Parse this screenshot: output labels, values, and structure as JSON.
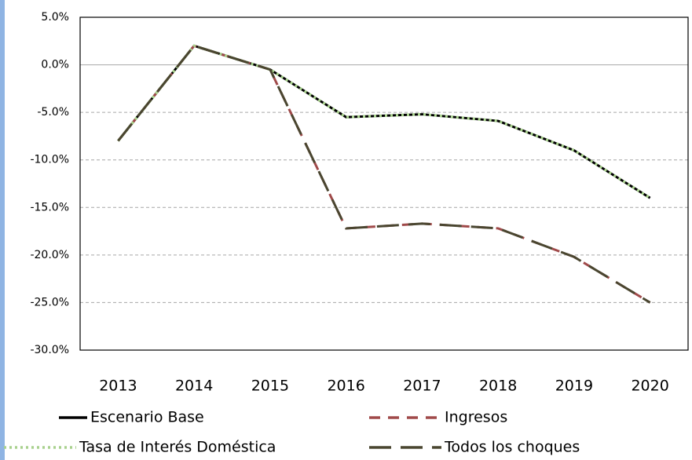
{
  "chart_data": {
    "type": "line",
    "categories": [
      "2013",
      "2014",
      "2015",
      "2016",
      "2017",
      "2018",
      "2019",
      "2020"
    ],
    "series": [
      {
        "name": "Escenario Base",
        "color": "#000000",
        "dash": "solid",
        "values": [
          -8.0,
          2.0,
          -0.5,
          -5.5,
          -5.2,
          -5.9,
          -9.0,
          -14.0
        ]
      },
      {
        "name": "Ingresos",
        "color": "#a04a4a",
        "dash": "dash",
        "values": [
          -8.0,
          2.0,
          -0.5,
          -17.2,
          -16.7,
          -17.2,
          -20.2,
          -25.0
        ]
      },
      {
        "name": "Tasa de Interés Doméstica",
        "color": "#a9d18e",
        "dash": "dot",
        "values": [
          -8.0,
          2.0,
          -0.5,
          -5.5,
          -5.2,
          -5.9,
          -9.0,
          -14.0
        ]
      },
      {
        "name": "Todos los choques",
        "color": "#4a4630",
        "dash": "longdash",
        "values": [
          -8.0,
          2.0,
          -0.5,
          -17.2,
          -16.7,
          -17.2,
          -20.2,
          -25.0
        ]
      }
    ],
    "ylim": [
      -30,
      5
    ],
    "yticks": [
      {
        "value": -30,
        "label": "-30.0%"
      },
      {
        "value": -25,
        "label": "-25.0%"
      },
      {
        "value": -20,
        "label": "-20.0%"
      },
      {
        "value": -15,
        "label": "-15.0%"
      },
      {
        "value": -10,
        "label": "-10.0%"
      },
      {
        "value": -5,
        "label": "-5.0%"
      },
      {
        "value": 0,
        "label": "0.0%"
      },
      {
        "value": 5,
        "label": "5.0%"
      }
    ],
    "grid": true,
    "legend": "bottom"
  }
}
